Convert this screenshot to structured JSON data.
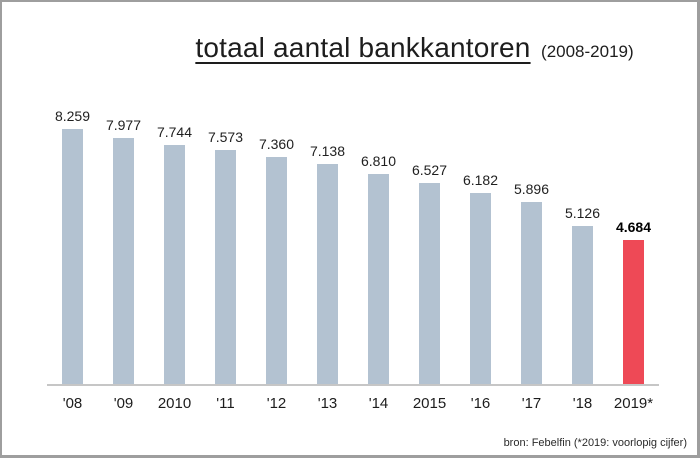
{
  "chart_data": {
    "type": "bar",
    "title": "totaal aantal bankkantoren",
    "subtitle": "(2008-2019)",
    "categories": [
      "'08",
      "'09",
      "2010",
      "'11",
      "'12",
      "'13",
      "'14",
      "2015",
      "'16",
      "'17",
      "'18",
      "2019*"
    ],
    "values": [
      8259,
      7977,
      7744,
      7573,
      7360,
      7138,
      6810,
      6527,
      6182,
      5896,
      5126,
      4684
    ],
    "value_labels": [
      "8.259",
      "7.977",
      "7.744",
      "7.573",
      "7.360",
      "7.138",
      "6.810",
      "6.527",
      "6.182",
      "5.896",
      "5.126",
      "4.684"
    ],
    "highlight_index": 11,
    "bar_color": "#b3c2d1",
    "highlight_color": "#ee4956",
    "axis_color": "#c6c6c6",
    "ylim": [
      0,
      8259
    ],
    "grid": "off",
    "legend": "none",
    "xlabel": "",
    "ylabel": "",
    "source": "bron: Febelfin (*2019: voorlopig cijfer)"
  }
}
